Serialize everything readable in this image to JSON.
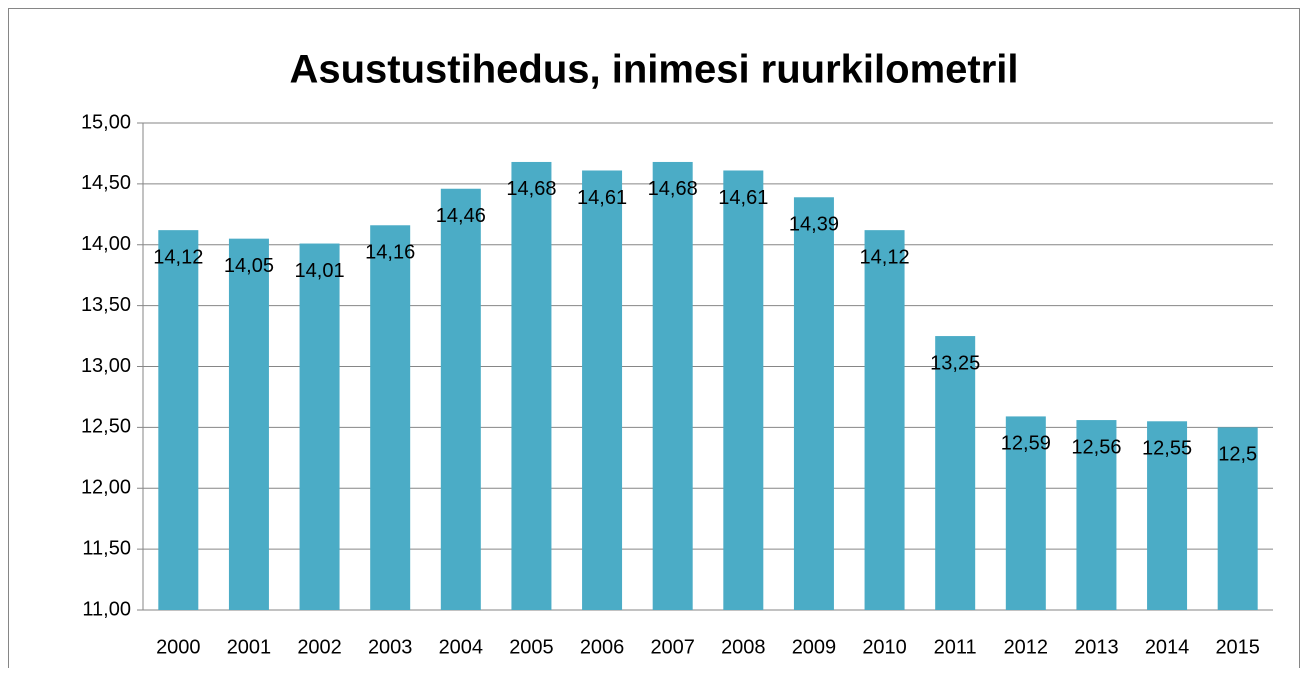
{
  "chart_data": {
    "type": "bar",
    "title": "Asustustihedus, inimesi ruurkilometril",
    "categories": [
      "2000",
      "2001",
      "2002",
      "2003",
      "2004",
      "2005",
      "2006",
      "2007",
      "2008",
      "2009",
      "2010",
      "2011",
      "2012",
      "2013",
      "2014",
      "2015"
    ],
    "values": [
      14.12,
      14.05,
      14.01,
      14.16,
      14.46,
      14.68,
      14.61,
      14.68,
      14.61,
      14.39,
      14.12,
      13.25,
      12.59,
      12.56,
      12.55,
      12.5
    ],
    "value_labels": [
      "14,12",
      "14,05",
      "14,01",
      "14,16",
      "14,46",
      "14,68",
      "14,61",
      "14,68",
      "14,61",
      "14,39",
      "14,12",
      "13,25",
      "12,59",
      "12,56",
      "12,55",
      "12,5"
    ],
    "color": "#4bacc6",
    "ylim": [
      11,
      15
    ],
    "yticks": [
      {
        "value": 11,
        "label": "11,00"
      },
      {
        "value": 11.5,
        "label": "11,50"
      },
      {
        "value": 12,
        "label": "12,00"
      },
      {
        "value": 12.5,
        "label": "12,50"
      },
      {
        "value": 13,
        "label": "13,00"
      },
      {
        "value": 13.5,
        "label": "13,50"
      },
      {
        "value": 14,
        "label": "14,00"
      },
      {
        "value": 14.5,
        "label": "14,50"
      },
      {
        "value": 15,
        "label": "15,00"
      }
    ],
    "grid": true
  }
}
